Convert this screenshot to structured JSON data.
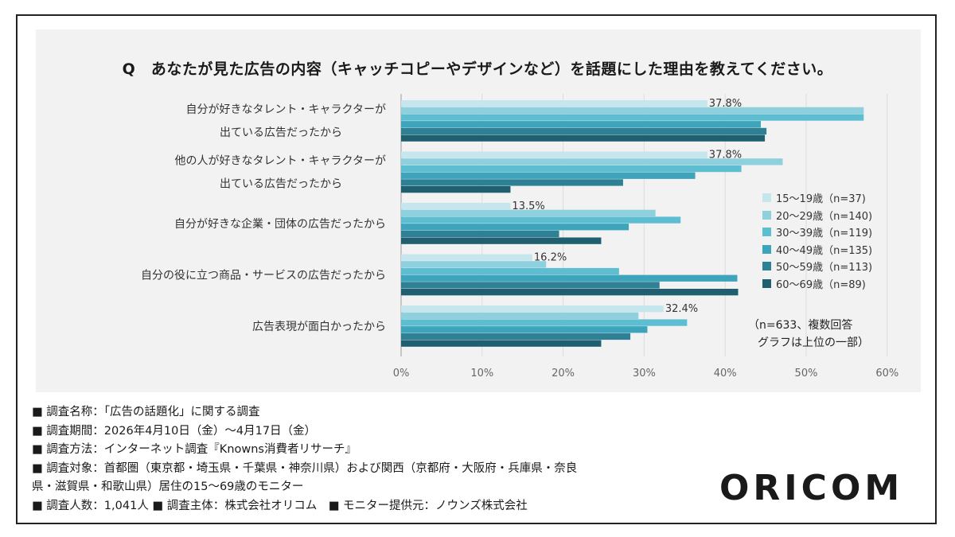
{
  "question": "Q　あなたが見た広告の内容（キャッチコピーやデザインなど）を話題にした理由を教えてください。",
  "note_line1": "（n=633、複数回答",
  "note_line2": "グラフは上位の一部）",
  "footer": [
    "■ 調査名称：「広告の話題化」に関する調査",
    "■ 調査期間：2026年4月10日（金）～4月17日（金）",
    "■ 調査方法：インターネット調査『Knowns消費者リサーチ』",
    "■ 調査対象：首都圏（東京都・埼玉県・千葉県・神奈川県）および関西（京都府・大阪府・兵庫県・奈良",
    "県・滋賀県・和歌山県）居住の15～69歳のモニター",
    "■ 調査人数：1,041人 ■ 調査主体：株式会社オリコム　■ モニター提供元：ノウンズ株式会社"
  ],
  "logo": "ORICOM",
  "chart_data": {
    "type": "bar",
    "orientation": "horizontal",
    "title": "Q　あなたが見た広告の内容（キャッチコピーやデザインなど）を話題にした理由を教えてください。",
    "categories": [
      [
        "自分が好きなタレント・キャラクターが",
        "出ている広告だったから"
      ],
      [
        "他の人が好きなタレント・キャラクターが",
        "出ている広告だったから"
      ],
      [
        "自分が好きな企業・団体の広告だったから"
      ],
      [
        "自分の役に立つ商品・サービスの広告だったから"
      ],
      [
        "広告表現が面白かったから"
      ]
    ],
    "xlim": [
      0,
      60
    ],
    "xticks": [
      "0%",
      "10%",
      "20%",
      "30%",
      "40%",
      "50%",
      "60%"
    ],
    "value_unit": "%",
    "legend_position": "right",
    "highlight_labels": [
      "37.8%",
      "37.8%",
      "13.5%",
      "16.2%",
      "32.4%"
    ],
    "series": [
      {
        "name": "15～19歳（n=37)",
        "color": "#c6e6ee",
        "values": [
          37.8,
          37.8,
          13.5,
          16.2,
          32.4
        ]
      },
      {
        "name": "20～29歳（n=140)",
        "color": "#8fd0de",
        "values": [
          57.1,
          47.1,
          31.4,
          17.9,
          29.3
        ]
      },
      {
        "name": "30～39歳（n=119)",
        "color": "#5dbdd1",
        "values": [
          57.1,
          42.0,
          34.5,
          26.9,
          35.3
        ]
      },
      {
        "name": "40～49歳（n=135)",
        "color": "#3ea4bb",
        "values": [
          44.4,
          36.3,
          28.1,
          41.5,
          30.4
        ]
      },
      {
        "name": "50～59歳（n=113)",
        "color": "#2e8094",
        "values": [
          45.1,
          27.4,
          19.5,
          31.9,
          28.3
        ]
      },
      {
        "name": "60～69歳（n=89)",
        "color": "#1f5f70",
        "values": [
          44.9,
          13.5,
          24.7,
          41.6,
          24.7
        ]
      }
    ]
  }
}
